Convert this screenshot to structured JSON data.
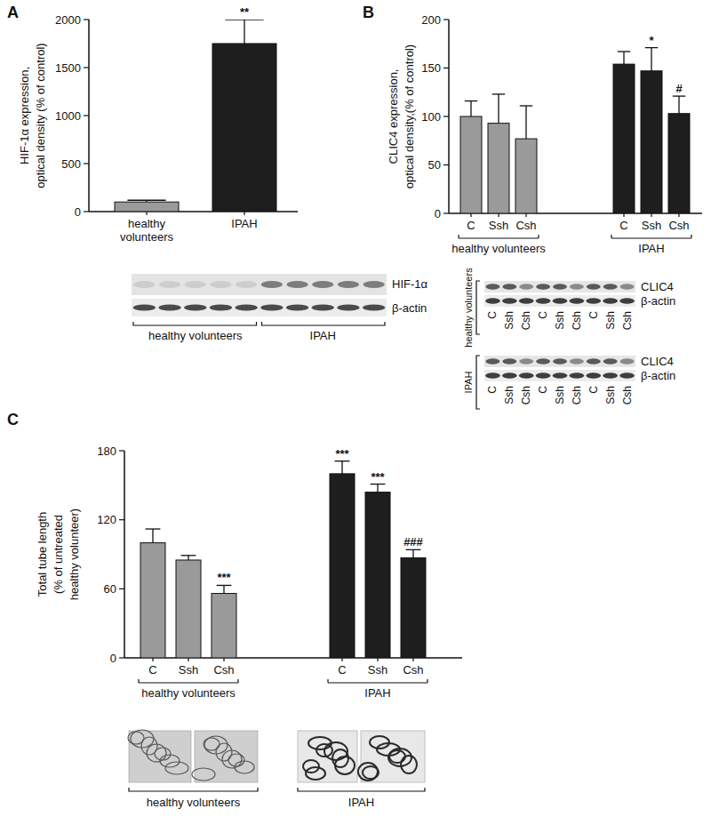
{
  "chart_data": [
    {
      "type": "bar",
      "panel": "A",
      "y_label": [
        "HIF-1α expression,",
        "optical density (% of control)"
      ],
      "categories": [
        "healthy volunteers",
        "IPAH"
      ],
      "values": [
        100,
        1750
      ],
      "errors": [
        18,
        250
      ],
      "colors": [
        "#9a9a9a",
        "#1e1e1e"
      ],
      "significance": [
        null,
        "**"
      ],
      "ylim": [
        0,
        2000
      ],
      "yticks": [
        0,
        500,
        1000,
        1500,
        2000
      ],
      "blot": {
        "rows": [
          "HIF-1α",
          "β-actin"
        ],
        "groups": [
          "healthy volunteers",
          "IPAH"
        ]
      }
    },
    {
      "type": "bar",
      "panel": "B",
      "y_label": [
        "CLIC4 expression,",
        "optical density,(% of control)"
      ],
      "categories": [
        "C",
        "Ssh",
        "Csh",
        "C",
        "Ssh",
        "Csh"
      ],
      "group_labels": [
        "healthy volunteers",
        "IPAH"
      ],
      "values": [
        100,
        93,
        77,
        154,
        147,
        103
      ],
      "errors": [
        16,
        30,
        34,
        13,
        24,
        18
      ],
      "colors": [
        "#9a9a9a",
        "#9a9a9a",
        "#9a9a9a",
        "#1e1e1e",
        "#1e1e1e",
        "#1e1e1e"
      ],
      "significance": [
        null,
        null,
        null,
        null,
        "*",
        "#"
      ],
      "ylim": [
        0,
        200
      ],
      "yticks": [
        0,
        50,
        100,
        150,
        200
      ],
      "blot": {
        "groups": [
          {
            "label": "healthy volunteers",
            "rows": [
              "CLIC4",
              "β-actin"
            ],
            "lanes": [
              "C",
              "Ssh",
              "Csh",
              "C",
              "Ssh",
              "Csh",
              "C",
              "Ssh",
              "Csh"
            ]
          },
          {
            "label": "IPAH",
            "rows": [
              "CLIC4",
              "β-actin"
            ],
            "lanes": [
              "C",
              "Ssh",
              "Csh",
              "C",
              "Ssh",
              "Csh",
              "C",
              "Ssh",
              "Csh"
            ]
          }
        ]
      }
    },
    {
      "type": "bar",
      "panel": "C",
      "y_label": [
        "Total tube length",
        "(% of untreated",
        "healthy volunteer)"
      ],
      "categories": [
        "C",
        "Ssh",
        "Csh",
        "C",
        "Ssh",
        "Csh"
      ],
      "group_labels": [
        "healthy volunteers",
        "IPAH"
      ],
      "values": [
        100,
        85,
        56,
        160,
        144,
        87
      ],
      "errors": [
        12,
        4,
        7,
        11,
        7,
        7
      ],
      "colors": [
        "#9a9a9a",
        "#9a9a9a",
        "#9a9a9a",
        "#1e1e1e",
        "#1e1e1e",
        "#1e1e1e"
      ],
      "significance": [
        null,
        null,
        "***",
        "***",
        "***",
        "###"
      ],
      "ylim": [
        0,
        180
      ],
      "yticks": [
        0,
        60,
        120,
        180
      ],
      "images": {
        "groups": [
          "healthy volunteers",
          "IPAH"
        ]
      }
    }
  ]
}
